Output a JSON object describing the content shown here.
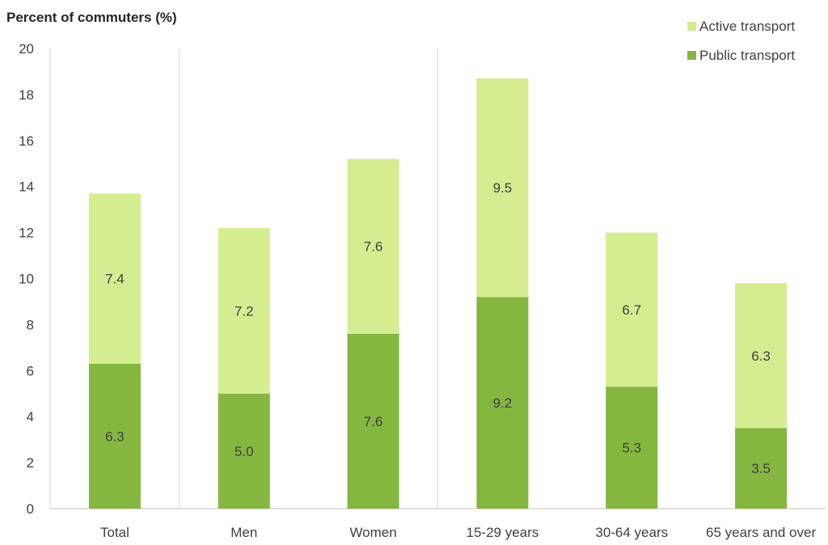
{
  "chart_data": {
    "type": "bar",
    "stacked": true,
    "ylabel": "Percent of commuters (%)",
    "xlabel": "",
    "ylim": [
      0,
      20
    ],
    "yticks": [
      0,
      2,
      4,
      6,
      8,
      10,
      12,
      14,
      16,
      18,
      20
    ],
    "categories": [
      "Total",
      "Men",
      "Women",
      "15-29 years",
      "30-64 years",
      "65 years and over"
    ],
    "groups": [
      {
        "categories": [
          "Total"
        ]
      },
      {
        "categories": [
          "Men",
          "Women"
        ]
      },
      {
        "categories": [
          "15-29 years",
          "30-64 years",
          "65 years and over"
        ]
      }
    ],
    "series": [
      {
        "name": "Public transport",
        "color": "#84b640",
        "values": [
          6.3,
          5.0,
          7.6,
          9.2,
          5.3,
          3.5
        ],
        "labels": [
          "6.3",
          "5.0",
          "7.6",
          "9.2",
          "5.3",
          "3.5"
        ]
      },
      {
        "name": "Active transport",
        "color": "#d4ed91",
        "values": [
          7.4,
          7.2,
          7.6,
          9.5,
          6.7,
          6.3
        ],
        "labels": [
          "7.4",
          "7.2",
          "7.6",
          "9.5",
          "6.7",
          "6.3"
        ]
      }
    ],
    "legend": {
      "position": "top-right",
      "entries": [
        {
          "name": "Active transport",
          "color": "#d4ed91"
        },
        {
          "name": "Public transport",
          "color": "#84b640"
        }
      ]
    },
    "grid": false
  }
}
